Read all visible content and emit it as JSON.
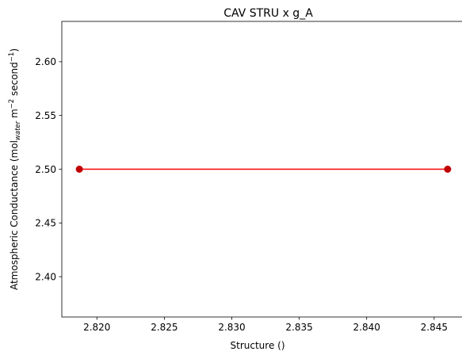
{
  "chart_data": {
    "type": "line",
    "title": "CAV STRU x g_A",
    "xlabel": "Structure ()",
    "ylabel": {
      "main": "Atmospheric Conductance (mol",
      "sub": "water",
      "unit_m": " m",
      "exp_m": "−2",
      "unit_s": " second",
      "exp_s": "−1",
      "close": ")"
    },
    "xlim": [
      2.8174,
      2.8473
    ],
    "ylim": [
      2.3625,
      2.6375
    ],
    "xticks": [
      2.82,
      2.825,
      2.83,
      2.835,
      2.84,
      2.845
    ],
    "xtick_labels": [
      "2.820",
      "2.825",
      "2.830",
      "2.835",
      "2.840",
      "2.845"
    ],
    "yticks": [
      2.4,
      2.45,
      2.5,
      2.55,
      2.6
    ],
    "ytick_labels": [
      "2.40",
      "2.45",
      "2.50",
      "2.55",
      "2.60"
    ],
    "series": [
      {
        "x": [
          2.8187,
          2.846
        ],
        "y": [
          2.5,
          2.5
        ],
        "line_color": "#ff0000",
        "marker_color": "#c00000"
      }
    ],
    "grid": false,
    "legend": "none"
  }
}
